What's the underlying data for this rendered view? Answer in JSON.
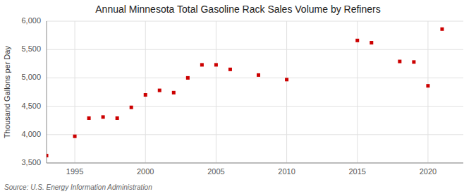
{
  "chart_data": {
    "type": "scatter",
    "title": "Annual Minnesota Total Gasoline Rack Sales Volume by Refiners",
    "ylabel": "Thousand Gallons per Day",
    "source": "Source: U.S. Energy Information Administration",
    "x": [
      1993,
      1995,
      1996,
      1997,
      1998,
      1999,
      2000,
      2001,
      2002,
      2003,
      2004,
      2005,
      2006,
      2008,
      2010,
      2015,
      2016,
      2018,
      2019,
      2020,
      2021
    ],
    "values": [
      3630,
      3970,
      4290,
      4310,
      4290,
      4480,
      4700,
      4780,
      4740,
      5000,
      5230,
      5230,
      5150,
      5050,
      4970,
      5660,
      5620,
      5290,
      5280,
      4860,
      5860
    ],
    "color": "#cc0000",
    "marker": "square",
    "xlim": [
      1993,
      2022.5
    ],
    "ylim": [
      3500,
      6000
    ],
    "xticks": [
      1995,
      2000,
      2005,
      2010,
      2015,
      2020
    ],
    "yticks": [
      {
        "value": 3500,
        "label": "3,500"
      },
      {
        "value": 4000,
        "label": "4,000"
      },
      {
        "value": 4500,
        "label": "4,500"
      },
      {
        "value": 5000,
        "label": "5,000"
      },
      {
        "value": 5500,
        "label": "5,500"
      },
      {
        "value": 6000,
        "label": "6,000"
      }
    ],
    "grid": true
  }
}
